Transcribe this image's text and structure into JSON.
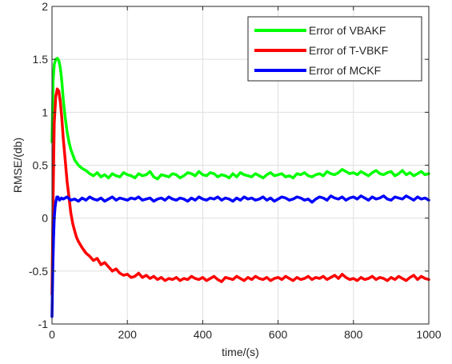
{
  "chart_data": {
    "type": "line",
    "xlabel": "time/(s)",
    "ylabel": "RMSE/(db)",
    "xlim": [
      0,
      1000
    ],
    "ylim": [
      -1,
      2
    ],
    "xticks": [
      0,
      200,
      400,
      600,
      800,
      1000
    ],
    "yticks": [
      -1,
      -0.5,
      0,
      0.5,
      1,
      1.5,
      2
    ],
    "xtick_labels": [
      "0",
      "200",
      "400",
      "600",
      "800",
      "1000"
    ],
    "ytick_labels": [
      "-1",
      "-0.5",
      "0",
      "0.5",
      "1",
      "1.5",
      "2"
    ],
    "grid": true,
    "legend_position": "top-right",
    "series": [
      {
        "name": "Error of VBAKF",
        "color": "#00ff00",
        "x": [
          0,
          3,
          6,
          10,
          14,
          18,
          22,
          26,
          30,
          35,
          40,
          45,
          50,
          55,
          60,
          70,
          80,
          90,
          100,
          110,
          120,
          130,
          140,
          150,
          160,
          170,
          180,
          190,
          200,
          210,
          220,
          230,
          240,
          250,
          260,
          270,
          280,
          290,
          300,
          310,
          320,
          330,
          340,
          350,
          360,
          370,
          380,
          390,
          400,
          410,
          420,
          430,
          440,
          450,
          460,
          470,
          480,
          490,
          500,
          510,
          520,
          530,
          540,
          550,
          560,
          570,
          580,
          590,
          600,
          610,
          620,
          630,
          640,
          650,
          660,
          670,
          680,
          690,
          700,
          710,
          720,
          730,
          740,
          750,
          760,
          770,
          780,
          790,
          800,
          810,
          820,
          830,
          840,
          850,
          860,
          870,
          880,
          890,
          900,
          910,
          920,
          930,
          940,
          950,
          960,
          970,
          980,
          990,
          1000
        ],
        "y": [
          0.72,
          1.3,
          1.45,
          1.5,
          1.51,
          1.49,
          1.42,
          1.3,
          1.12,
          0.95,
          0.82,
          0.72,
          0.65,
          0.6,
          0.55,
          0.5,
          0.47,
          0.45,
          0.42,
          0.4,
          0.43,
          0.39,
          0.41,
          0.38,
          0.42,
          0.4,
          0.39,
          0.43,
          0.41,
          0.4,
          0.38,
          0.42,
          0.4,
          0.41,
          0.44,
          0.39,
          0.37,
          0.41,
          0.4,
          0.39,
          0.42,
          0.41,
          0.38,
          0.4,
          0.43,
          0.42,
          0.4,
          0.44,
          0.41,
          0.4,
          0.43,
          0.42,
          0.39,
          0.41,
          0.4,
          0.38,
          0.42,
          0.39,
          0.43,
          0.41,
          0.4,
          0.39,
          0.42,
          0.4,
          0.38,
          0.41,
          0.43,
          0.4,
          0.41,
          0.42,
          0.39,
          0.4,
          0.38,
          0.42,
          0.41,
          0.43,
          0.4,
          0.39,
          0.41,
          0.42,
          0.4,
          0.44,
          0.42,
          0.41,
          0.43,
          0.46,
          0.44,
          0.42,
          0.43,
          0.41,
          0.44,
          0.42,
          0.4,
          0.43,
          0.45,
          0.42,
          0.41,
          0.43,
          0.44,
          0.4,
          0.42,
          0.45,
          0.41,
          0.43,
          0.4,
          0.42,
          0.44,
          0.41,
          0.42
        ]
      },
      {
        "name": "Error of T-VBKF",
        "color": "#ff0000",
        "x": [
          0,
          3,
          6,
          10,
          14,
          18,
          22,
          26,
          30,
          35,
          40,
          45,
          50,
          55,
          60,
          65,
          70,
          80,
          90,
          100,
          110,
          120,
          130,
          140,
          150,
          160,
          170,
          180,
          190,
          200,
          210,
          220,
          230,
          240,
          250,
          260,
          270,
          280,
          290,
          300,
          310,
          320,
          330,
          340,
          350,
          360,
          370,
          380,
          390,
          400,
          410,
          420,
          430,
          440,
          450,
          460,
          470,
          480,
          490,
          500,
          510,
          520,
          530,
          540,
          550,
          560,
          570,
          580,
          590,
          600,
          610,
          620,
          630,
          640,
          650,
          660,
          670,
          680,
          690,
          700,
          710,
          720,
          730,
          740,
          750,
          760,
          770,
          780,
          790,
          800,
          810,
          820,
          830,
          840,
          850,
          860,
          870,
          880,
          890,
          900,
          910,
          920,
          930,
          940,
          950,
          960,
          970,
          980,
          990,
          1000
        ],
        "y": [
          -0.72,
          0.2,
          0.9,
          1.15,
          1.22,
          1.2,
          1.1,
          0.95,
          0.75,
          0.55,
          0.35,
          0.2,
          0.05,
          -0.05,
          -0.12,
          -0.18,
          -0.22,
          -0.28,
          -0.33,
          -0.36,
          -0.4,
          -0.38,
          -0.44,
          -0.42,
          -0.46,
          -0.5,
          -0.48,
          -0.52,
          -0.54,
          -0.53,
          -0.56,
          -0.55,
          -0.52,
          -0.56,
          -0.54,
          -0.57,
          -0.55,
          -0.58,
          -0.56,
          -0.59,
          -0.57,
          -0.58,
          -0.56,
          -0.59,
          -0.57,
          -0.58,
          -0.55,
          -0.57,
          -0.58,
          -0.56,
          -0.59,
          -0.57,
          -0.55,
          -0.58,
          -0.6,
          -0.56,
          -0.57,
          -0.58,
          -0.55,
          -0.57,
          -0.59,
          -0.56,
          -0.58,
          -0.55,
          -0.57,
          -0.58,
          -0.56,
          -0.59,
          -0.57,
          -0.56,
          -0.58,
          -0.55,
          -0.57,
          -0.59,
          -0.56,
          -0.58,
          -0.57,
          -0.55,
          -0.58,
          -0.56,
          -0.57,
          -0.55,
          -0.58,
          -0.56,
          -0.54,
          -0.57,
          -0.53,
          -0.56,
          -0.58,
          -0.57,
          -0.59,
          -0.56,
          -0.58,
          -0.57,
          -0.55,
          -0.58,
          -0.56,
          -0.57,
          -0.59,
          -0.56,
          -0.58,
          -0.55,
          -0.57,
          -0.59,
          -0.56,
          -0.54,
          -0.58,
          -0.55,
          -0.57,
          -0.58
        ]
      },
      {
        "name": "Error of MCKF",
        "color": "#0000ff",
        "x": [
          0,
          2,
          4,
          6,
          8,
          10,
          13,
          16,
          20,
          25,
          30,
          40,
          50,
          60,
          70,
          80,
          90,
          100,
          110,
          120,
          130,
          140,
          150,
          160,
          170,
          180,
          190,
          200,
          210,
          220,
          230,
          240,
          250,
          260,
          270,
          280,
          290,
          300,
          310,
          320,
          330,
          340,
          350,
          360,
          370,
          380,
          390,
          400,
          410,
          420,
          430,
          440,
          450,
          460,
          470,
          480,
          490,
          500,
          510,
          520,
          530,
          540,
          550,
          560,
          570,
          580,
          590,
          600,
          610,
          620,
          630,
          640,
          650,
          660,
          670,
          680,
          690,
          700,
          710,
          720,
          730,
          740,
          750,
          760,
          770,
          780,
          790,
          800,
          810,
          820,
          830,
          840,
          850,
          860,
          870,
          880,
          890,
          900,
          910,
          920,
          930,
          940,
          950,
          960,
          970,
          980,
          990,
          1000
        ],
        "y": [
          -0.93,
          -0.5,
          -0.2,
          0.0,
          0.1,
          0.15,
          0.2,
          0.2,
          0.17,
          0.19,
          0.18,
          0.2,
          0.17,
          0.18,
          0.16,
          0.19,
          0.17,
          0.2,
          0.18,
          0.17,
          0.19,
          0.16,
          0.18,
          0.2,
          0.17,
          0.19,
          0.18,
          0.17,
          0.19,
          0.18,
          0.2,
          0.17,
          0.18,
          0.19,
          0.16,
          0.18,
          0.19,
          0.17,
          0.2,
          0.18,
          0.17,
          0.19,
          0.18,
          0.16,
          0.19,
          0.17,
          0.2,
          0.18,
          0.17,
          0.19,
          0.18,
          0.2,
          0.17,
          0.19,
          0.18,
          0.16,
          0.19,
          0.17,
          0.2,
          0.18,
          0.19,
          0.17,
          0.18,
          0.2,
          0.17,
          0.19,
          0.16,
          0.18,
          0.2,
          0.19,
          0.17,
          0.18,
          0.2,
          0.19,
          0.17,
          0.18,
          0.15,
          0.18,
          0.2,
          0.19,
          0.17,
          0.21,
          0.19,
          0.18,
          0.2,
          0.17,
          0.19,
          0.2,
          0.18,
          0.21,
          0.19,
          0.17,
          0.2,
          0.18,
          0.19,
          0.21,
          0.18,
          0.17,
          0.2,
          0.19,
          0.18,
          0.21,
          0.19,
          0.17,
          0.2,
          0.18,
          0.19,
          0.17
        ]
      }
    ]
  }
}
